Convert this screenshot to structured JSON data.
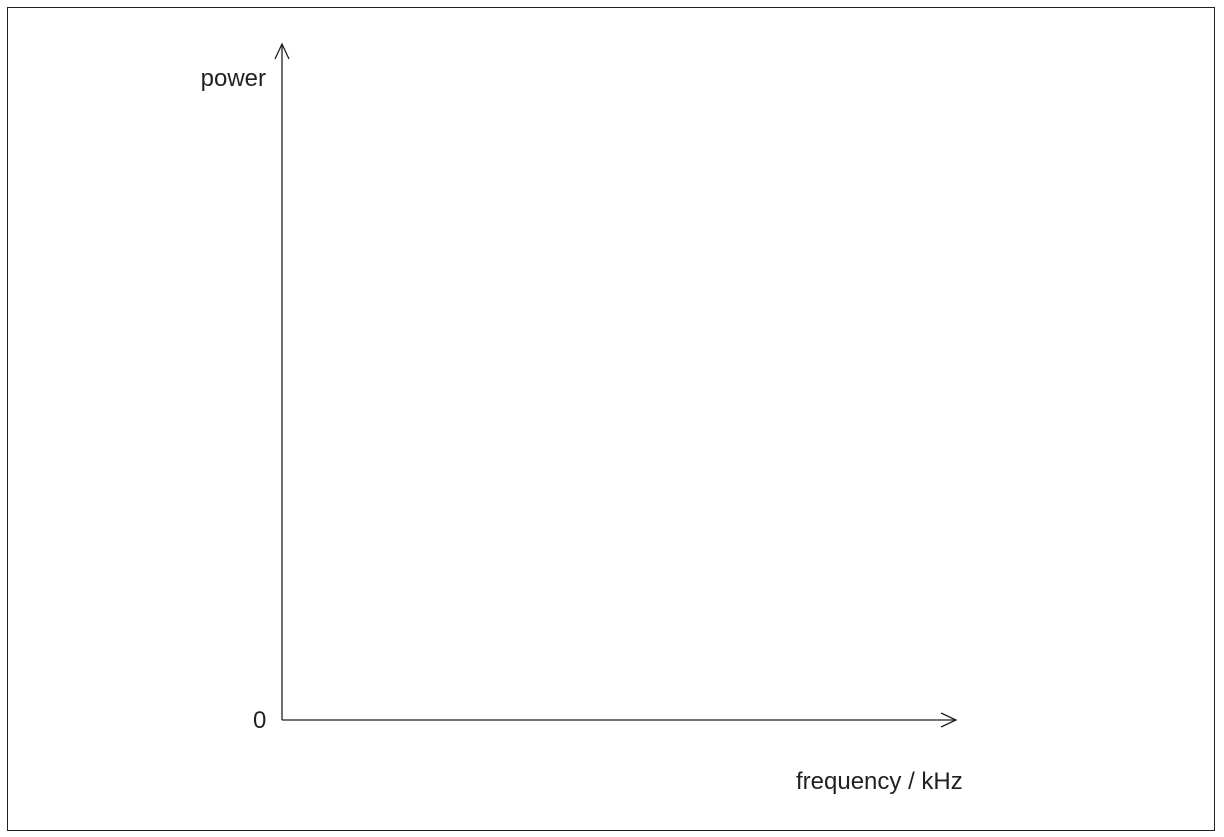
{
  "diagram": {
    "y_axis_label": "power",
    "x_axis_label": "frequency / kHz",
    "origin_label": "0",
    "colors": {
      "ink": "#231f20",
      "background": "#ffffff"
    }
  }
}
